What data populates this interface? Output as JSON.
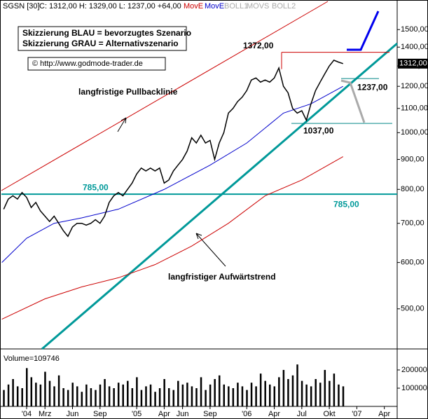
{
  "chart_data": {
    "type": "line",
    "header": {
      "symbol": "SGSN [30]",
      "quote": "C: 1312,00 H: 1329,00 L: 1237,00 +64,00",
      "ind1": "MovE",
      "ind2": "MovE",
      "ind3": "BOLL1",
      "ind4": "MOVS",
      "ind5": "BOLL2"
    },
    "legend_box": [
      "Skizzierung BLAU = bevorzugtes Szenario",
      "Skizzierung GRAU = Alternativszenario"
    ],
    "copyright": "© http://www.godmode-trader.de",
    "annotations": [
      "langfristige Pullbacklinie",
      "langfristiger Aufwärtstrend"
    ],
    "levels": [
      {
        "value": 1372,
        "label": "1372,00"
      },
      {
        "value": 1237,
        "label": "1237,00"
      },
      {
        "value": 1037,
        "label": "1037,00"
      },
      {
        "value": 785,
        "label": "785,00"
      }
    ],
    "last_price": {
      "value": 1312,
      "label": "1312,00"
    },
    "log_scale": true,
    "ylim": [
      427,
      1676
    ],
    "yticks": [
      {
        "value": 500,
        "label": "500,00"
      },
      {
        "value": 600,
        "label": "600,00"
      },
      {
        "value": 700,
        "label": "700,00"
      },
      {
        "value": 800,
        "label": "800,00"
      },
      {
        "value": 900,
        "label": "900,00"
      },
      {
        "value": 1000,
        "label": "1000,00"
      },
      {
        "value": 1100,
        "label": "1100,00"
      },
      {
        "value": 1200,
        "label": "1200,00"
      },
      {
        "value": 1300,
        "label": "1300,00"
      },
      {
        "value": 1400,
        "label": "1400,00"
      },
      {
        "value": 1500,
        "label": "1500,00"
      }
    ],
    "xlim": [
      -2.75,
      40.4
    ],
    "xticks": [
      {
        "value": 0,
        "label": "'04"
      },
      {
        "value": 2,
        "label": "Mrz"
      },
      {
        "value": 5,
        "label": "Jun"
      },
      {
        "value": 8,
        "label": "Sep"
      },
      {
        "value": 12,
        "label": "'05"
      },
      {
        "value": 15,
        "label": "Apr"
      },
      {
        "value": 17,
        "label": "Jun"
      },
      {
        "value": 20,
        "label": "Sep"
      },
      {
        "value": 24,
        "label": "'06"
      },
      {
        "value": 27,
        "label": "Apr"
      },
      {
        "value": 30,
        "label": "Jul"
      },
      {
        "value": 33,
        "label": "Okt"
      },
      {
        "value": 36,
        "label": "'07"
      },
      {
        "value": 39,
        "label": "Apr"
      }
    ],
    "x": [
      -2.5,
      -2,
      -1.5,
      -1,
      -0.5,
      0,
      0.5,
      1,
      1.5,
      2,
      2.5,
      3,
      3.5,
      4,
      4.5,
      5,
      5.5,
      6,
      6.5,
      7,
      7.5,
      8,
      8.5,
      9,
      9.5,
      10,
      10.5,
      11,
      11.5,
      12,
      12.5,
      13,
      13.5,
      14,
      14.5,
      15,
      15.5,
      16,
      16.5,
      17,
      17.5,
      18,
      18.5,
      19,
      19.5,
      20,
      20.5,
      21,
      21.5,
      22,
      22.5,
      23,
      23.5,
      24,
      24.5,
      25,
      25.5,
      26,
      26.5,
      27,
      27.5,
      28,
      28.5,
      29,
      29.5,
      30,
      30.5,
      31,
      31.5,
      32,
      32.5,
      33,
      33.5,
      34,
      34.5
    ],
    "series": [
      {
        "name": "SGSN",
        "color": "#000000",
        "values": [
          740,
          770,
          780,
          770,
          790,
          775,
          745,
          760,
          735,
          720,
          705,
          720,
          700,
          680,
          665,
          690,
          700,
          700,
          695,
          700,
          710,
          700,
          720,
          760,
          780,
          790,
          780,
          800,
          820,
          850,
          870,
          860,
          870,
          860,
          870,
          820,
          830,
          860,
          880,
          900,
          930,
          980,
          960,
          990,
          960,
          970,
          900,
          960,
          1000,
          1080,
          1100,
          1130,
          1150,
          1180,
          1230,
          1240,
          1220,
          1230,
          1220,
          1240,
          1290,
          1200,
          1170,
          1100,
          1080,
          1090,
          1050,
          1120,
          1180,
          1220,
          1260,
          1300,
          1330,
          1320,
          1312
        ]
      }
    ],
    "moving_averages": [
      {
        "color": "#0000cc",
        "x": [
          -2.7,
          0,
          3,
          6,
          10,
          15,
          20,
          24,
          28,
          31,
          34.5
        ],
        "values": [
          600,
          660,
          700,
          715,
          740,
          800,
          880,
          960,
          1080,
          1120,
          1200
        ]
      },
      {
        "color": "#cc0000",
        "x": [
          -2.7,
          2,
          6,
          10,
          14,
          18,
          22,
          26,
          30,
          34.5
        ],
        "values": [
          480,
          520,
          545,
          565,
          595,
          640,
          700,
          780,
          830,
          910
        ]
      }
    ],
    "volume": {
      "label": "Volume=109746",
      "ylim": [
        0,
        296000
      ],
      "yticks": [
        100000,
        200000
      ],
      "color": "#000000",
      "values": [
        90000,
        120000,
        150000,
        110000,
        100000,
        210000,
        160000,
        130000,
        120000,
        190000,
        140000,
        110000,
        170000,
        100000,
        90000,
        130000,
        110000,
        80000,
        120000,
        100000,
        90000,
        120000,
        150000,
        110000,
        100000,
        130000,
        120000,
        140000,
        100000,
        160000,
        90000,
        110000,
        120000,
        80000,
        100000,
        150000,
        100000,
        90000,
        140000,
        120000,
        130000,
        110000,
        100000,
        160000,
        90000,
        120000,
        150000,
        170000,
        120000,
        110000,
        100000,
        130000,
        110000,
        90000,
        130000,
        110000,
        180000,
        140000,
        120000,
        110000,
        160000,
        200000,
        150000,
        170000,
        230000,
        140000,
        120000,
        110000,
        150000,
        130000,
        200000,
        140000,
        180000,
        120000,
        110000
      ]
    }
  }
}
